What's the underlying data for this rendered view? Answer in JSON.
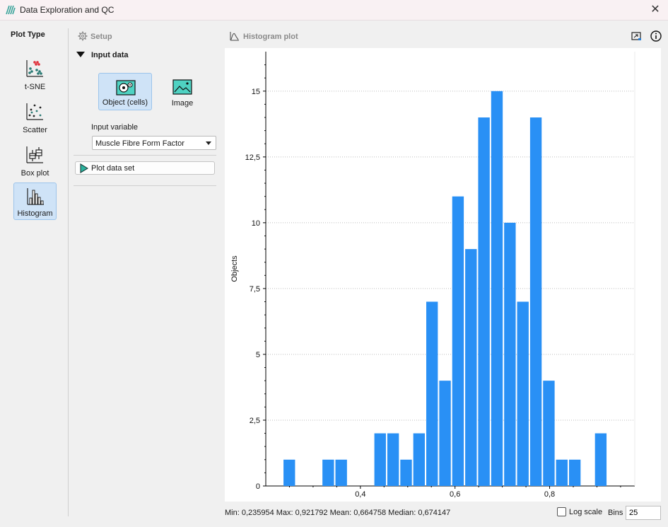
{
  "window": {
    "title": "Data Exploration and QC"
  },
  "sidebar": {
    "title": "Plot Type",
    "items": [
      {
        "label": "t-SNE",
        "icon": "tsne-icon",
        "active": false
      },
      {
        "label": "Scatter",
        "icon": "scatter-icon",
        "active": false
      },
      {
        "label": "Box plot",
        "icon": "boxplot-icon",
        "active": false
      },
      {
        "label": "Histogram",
        "icon": "histogram-icon",
        "active": true
      }
    ]
  },
  "setup": {
    "title": "Setup",
    "input_data_label": "Input data",
    "sources": [
      {
        "label": "Object (cells)",
        "icon": "object-cells-icon",
        "active": true
      },
      {
        "label": "Image",
        "icon": "image-icon",
        "active": false
      }
    ],
    "input_variable_label": "Input variable",
    "input_variable_value": "Muscle Fibre Form Factor",
    "plot_button_label": "Plot data set"
  },
  "plot": {
    "title": "Histogram plot",
    "accent_color": "#2990f5"
  },
  "status": {
    "summary": "Min: 0,235954  Max: 0,921792  Mean: 0,664758  Median: 0,674147",
    "log_scale_label": "Log scale",
    "log_scale_checked": false,
    "bins_label": "Bins",
    "bins_value": "25"
  },
  "chart_data": {
    "type": "bar",
    "ylabel": "Objects",
    "xlabel": "",
    "xlim": [
      0.2,
      0.98
    ],
    "ylim": [
      0,
      16.5
    ],
    "xticks": [
      0.4,
      0.6,
      0.8
    ],
    "xtick_labels": [
      "0,4",
      "0,6",
      "0,8"
    ],
    "yticks": [
      0,
      2.5,
      5,
      7.5,
      10,
      12.5,
      15
    ],
    "ytick_labels": [
      "0",
      "2,5",
      "5",
      "7,5",
      "10",
      "12,5",
      "15"
    ],
    "bin_start": 0.235954,
    "bin_width": 0.027434,
    "values": [
      1,
      0,
      0,
      1,
      1,
      0,
      0,
      2,
      2,
      1,
      2,
      7,
      4,
      11,
      9,
      14,
      15,
      10,
      7,
      14,
      4,
      1,
      1,
      0,
      2
    ],
    "grid": true,
    "color": "#2990f5"
  }
}
